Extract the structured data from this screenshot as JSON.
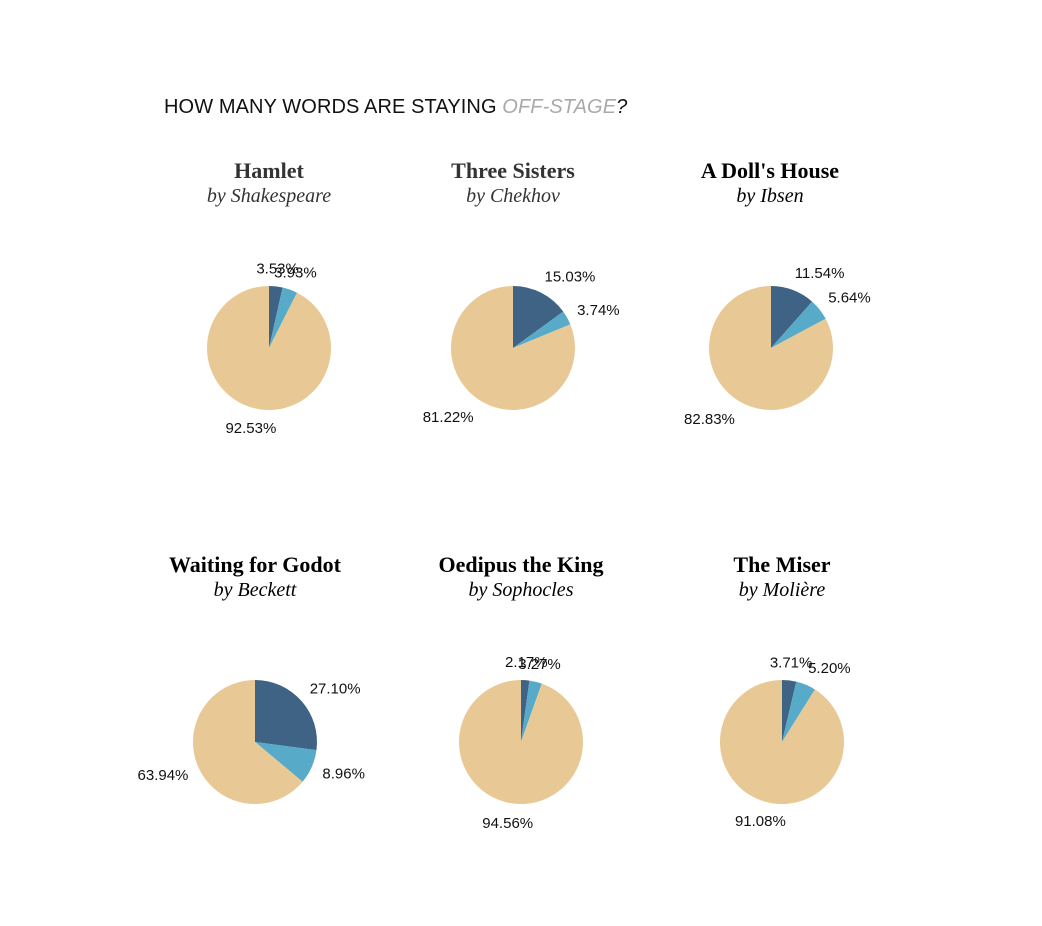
{
  "header": {
    "prefix": "HOW MANY WORDS ARE STAYING ",
    "accent": "OFF-STAGE",
    "suffix": "?"
  },
  "colors": {
    "dark_slice": "#3f6384",
    "mid_slice": "#57abc8",
    "main_slice": "#e8c995",
    "accent_text": "#a9a9a9"
  },
  "chart_data": [
    {
      "type": "pie",
      "title": "Hamlet",
      "subtitle": "by Shakespeare",
      "values": [
        3.53,
        3.93,
        92.53
      ],
      "labels": [
        "3.53%",
        "3.93%",
        "92.53%"
      ]
    },
    {
      "type": "pie",
      "title": "Three Sisters",
      "subtitle": "by Chekhov",
      "values": [
        15.03,
        3.74,
        81.22
      ],
      "labels": [
        "15.03%",
        "3.74%",
        "81.22%"
      ]
    },
    {
      "type": "pie",
      "title": "A Doll's House",
      "subtitle": "by Ibsen",
      "values": [
        11.54,
        5.64,
        82.83
      ],
      "labels": [
        "11.54%",
        "5.64%",
        "82.83%"
      ]
    },
    {
      "type": "pie",
      "title": "Waiting for Godot",
      "subtitle": "by Beckett",
      "values": [
        27.1,
        8.96,
        63.94
      ],
      "labels": [
        "27.10%",
        "8.96%",
        "63.94%"
      ]
    },
    {
      "type": "pie",
      "title": "Oedipus the King",
      "subtitle": "by Sophocles",
      "values": [
        2.17,
        3.27,
        94.56
      ],
      "labels": [
        "2.17%",
        "3.27%",
        "94.56%"
      ]
    },
    {
      "type": "pie",
      "title": "The Miser",
      "subtitle": "by Molière",
      "values": [
        3.71,
        5.2,
        91.08
      ],
      "labels": [
        "3.71%",
        "5.20%",
        "91.08%"
      ]
    }
  ]
}
